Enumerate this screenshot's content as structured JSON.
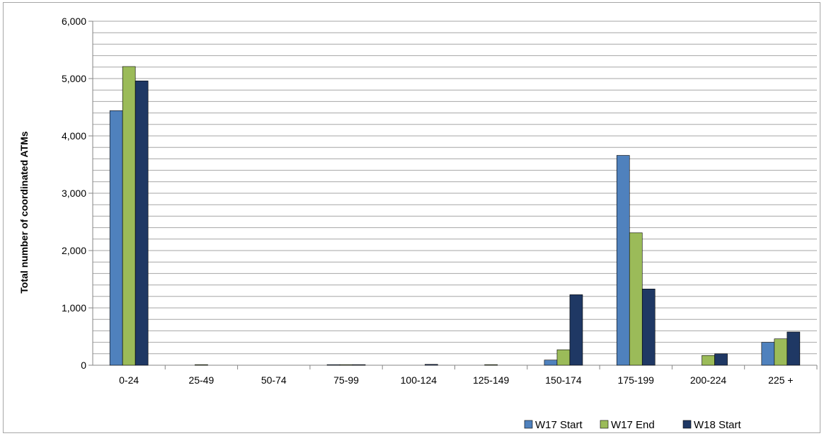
{
  "chart_data": {
    "type": "bar",
    "title": "",
    "xlabel": "",
    "ylabel": "Total  number  of  coordinated  ATMs",
    "categories": [
      "0-24",
      "25-49",
      "50-74",
      "75-99",
      "100-124",
      "125-149",
      "150-174",
      "175-199",
      "200-224",
      "225 +"
    ],
    "y_ticks": [
      "0",
      "1,000",
      "2,000",
      "3,000",
      "4,000",
      "5,000",
      "6,000"
    ],
    "ylim": [
      0,
      6000
    ],
    "minor_grid_step": 200,
    "grid": true,
    "legend_position": "bottom-right",
    "series": [
      {
        "name": "W17 Start",
        "color": "#4f81bd",
        "values": [
          4440,
          0,
          0,
          10,
          0,
          0,
          90,
          3660,
          0,
          400
        ]
      },
      {
        "name": "W17 End",
        "color": "#9bbb59",
        "values": [
          5210,
          10,
          0,
          10,
          0,
          10,
          270,
          2310,
          170,
          460
        ]
      },
      {
        "name": "W18 Start",
        "color": "#1f3864",
        "values": [
          4960,
          0,
          0,
          10,
          15,
          0,
          1230,
          1330,
          200,
          580
        ]
      }
    ]
  }
}
